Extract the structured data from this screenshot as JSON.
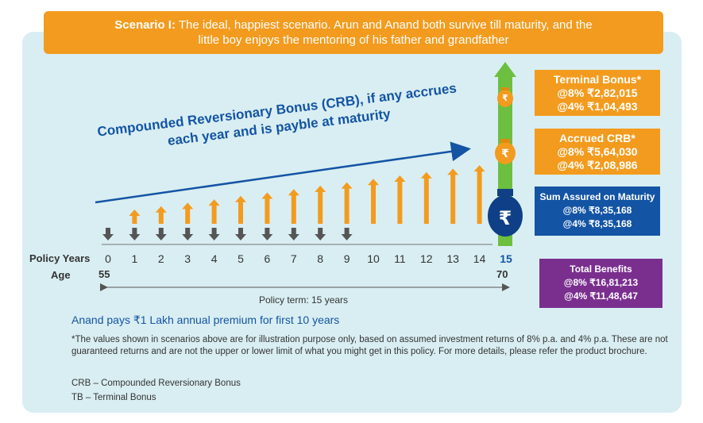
{
  "header": {
    "scenario": "Scenario I:",
    "line1": " The ideal, happiest scenario. Arun and Anand both survive till maturity, and the",
    "line2": "little boy enjoys the mentoring of his father and grandfather"
  },
  "crb_label": {
    "line1": "Compounded Reversionary Bonus (CRB), if any accrues",
    "line2": "each year and is payble at maturity"
  },
  "boxes": {
    "terminal": {
      "title": "Terminal Bonus*",
      "v8": "@8% ₹2,82,015",
      "v4": "@4% ₹1,04,493"
    },
    "accrued": {
      "title": "Accrued CRB*",
      "v8": "@8% ₹5,64,030",
      "v4": "@4% ₹2,08,986"
    },
    "sum": {
      "title": "Sum Assured on Maturity",
      "v8": "@8% ₹8,35,168",
      "v4": "@4% ₹8,35,168"
    },
    "total": {
      "title": "Total Benefits",
      "v8": "@8% ₹16,81,213",
      "v4": "@4% ₹11,48,647"
    }
  },
  "timeline": {
    "policy_years_label": "Policy Years",
    "age_label": "Age",
    "years": [
      "0",
      "1",
      "2",
      "3",
      "4",
      "5",
      "6",
      "7",
      "8",
      "9",
      "10",
      "11",
      "12",
      "13",
      "14",
      "15"
    ],
    "age_start": "55",
    "age_end": "70",
    "policy_term": "Policy term: 15 years"
  },
  "rupee_symbol": "₹",
  "premium_text": "Anand pays ₹1 Lakh annual premium for first 10 years",
  "note": "*The values shown in scenarios above are for illustration purpose only, based on assumed investment returns of 8% p.a. and 4% p.a. These are not guaranteed returns and are not the upper or lower limit of what you might get in this policy. For more details, please refer the product brochure.",
  "abbr": {
    "crb": "CRB – Compounded Reversionary Bonus",
    "tb": "TB – Terminal Bonus"
  },
  "colors": {
    "orange": "#f39b1e",
    "blue": "#1354a4",
    "green": "#6cbf3f",
    "purple": "#7a2f8f",
    "panel": "#d9eef2"
  }
}
